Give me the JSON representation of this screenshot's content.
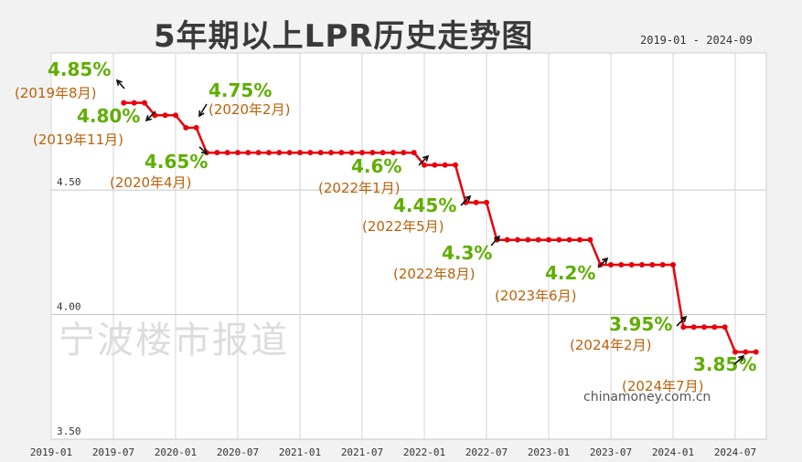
{
  "title": "5年期以上LPR历史走势图",
  "date_range": "2019-01 - 2024-09",
  "watermark": "宁波楼市报道",
  "source": "chinamoney.com.cn",
  "colors": {
    "line": "#e8000b",
    "rate_label": "#5fae00",
    "date_label": "#b8620a",
    "grid": "#d6d6d6",
    "axis_text": "#333333"
  },
  "chart_data": {
    "type": "line",
    "title": "5年期以上LPR历史走势图",
    "y_unit": "%",
    "ylim": [
      3.5,
      5.05
    ],
    "yticks": [
      3.5,
      4.0,
      4.5
    ],
    "ytick_labels": [
      "3.50",
      "4.00",
      "4.50"
    ],
    "xticks": [
      "2019-01",
      "2019-07",
      "2020-01",
      "2020-07",
      "2021-01",
      "2021-07",
      "2022-01",
      "2022-07",
      "2023-01",
      "2023-07",
      "2024-01",
      "2024-07"
    ],
    "grid": true,
    "series": [
      {
        "x": [
          "2019-08",
          "2019-09",
          "2019-10",
          "2019-11",
          "2019-12",
          "2020-01",
          "2020-02",
          "2020-03",
          "2020-04",
          "2020-05",
          "2020-06",
          "2020-07",
          "2020-08",
          "2020-09",
          "2020-10",
          "2020-11",
          "2020-12",
          "2021-01",
          "2021-02",
          "2021-03",
          "2021-04",
          "2021-05",
          "2021-06",
          "2021-07",
          "2021-08",
          "2021-09",
          "2021-10",
          "2021-11",
          "2021-12",
          "2022-01",
          "2022-02",
          "2022-03",
          "2022-04",
          "2022-05",
          "2022-06",
          "2022-07",
          "2022-08",
          "2022-09",
          "2022-10",
          "2022-11",
          "2022-12",
          "2023-01",
          "2023-02",
          "2023-03",
          "2023-04",
          "2023-05",
          "2023-06",
          "2023-07",
          "2023-08",
          "2023-09",
          "2023-10",
          "2023-11",
          "2023-12",
          "2024-01",
          "2024-02",
          "2024-03",
          "2024-04",
          "2024-05",
          "2024-06",
          "2024-07",
          "2024-08",
          "2024-09"
        ],
        "values": [
          4.85,
          4.85,
          4.85,
          4.8,
          4.8,
          4.8,
          4.75,
          4.75,
          4.65,
          4.65,
          4.65,
          4.65,
          4.65,
          4.65,
          4.65,
          4.65,
          4.65,
          4.65,
          4.65,
          4.65,
          4.65,
          4.65,
          4.65,
          4.65,
          4.65,
          4.65,
          4.65,
          4.65,
          4.65,
          4.6,
          4.6,
          4.6,
          4.6,
          4.45,
          4.45,
          4.45,
          4.3,
          4.3,
          4.3,
          4.3,
          4.3,
          4.3,
          4.3,
          4.3,
          4.3,
          4.3,
          4.2,
          4.2,
          4.2,
          4.2,
          4.2,
          4.2,
          4.2,
          4.2,
          3.95,
          3.95,
          3.95,
          3.95,
          3.95,
          3.85,
          3.85,
          3.85
        ]
      }
    ],
    "annotations": [
      {
        "rate": "4.85%",
        "date": "(2019年8月)"
      },
      {
        "rate": "4.80%",
        "date": "(2019年11月)"
      },
      {
        "rate": "4.75%",
        "date": "(2020年2月)"
      },
      {
        "rate": "4.65%",
        "date": "(2020年4月)"
      },
      {
        "rate": "4.6%",
        "date": "(2022年1月)"
      },
      {
        "rate": "4.45%",
        "date": "(2022年5月)"
      },
      {
        "rate": "4.3%",
        "date": "(2022年8月)"
      },
      {
        "rate": "4.2%",
        "date": "(2023年6月)"
      },
      {
        "rate": "3.95%",
        "date": "(2024年2月)"
      },
      {
        "rate": "3.85%",
        "date": "(2024年7月)"
      }
    ]
  }
}
